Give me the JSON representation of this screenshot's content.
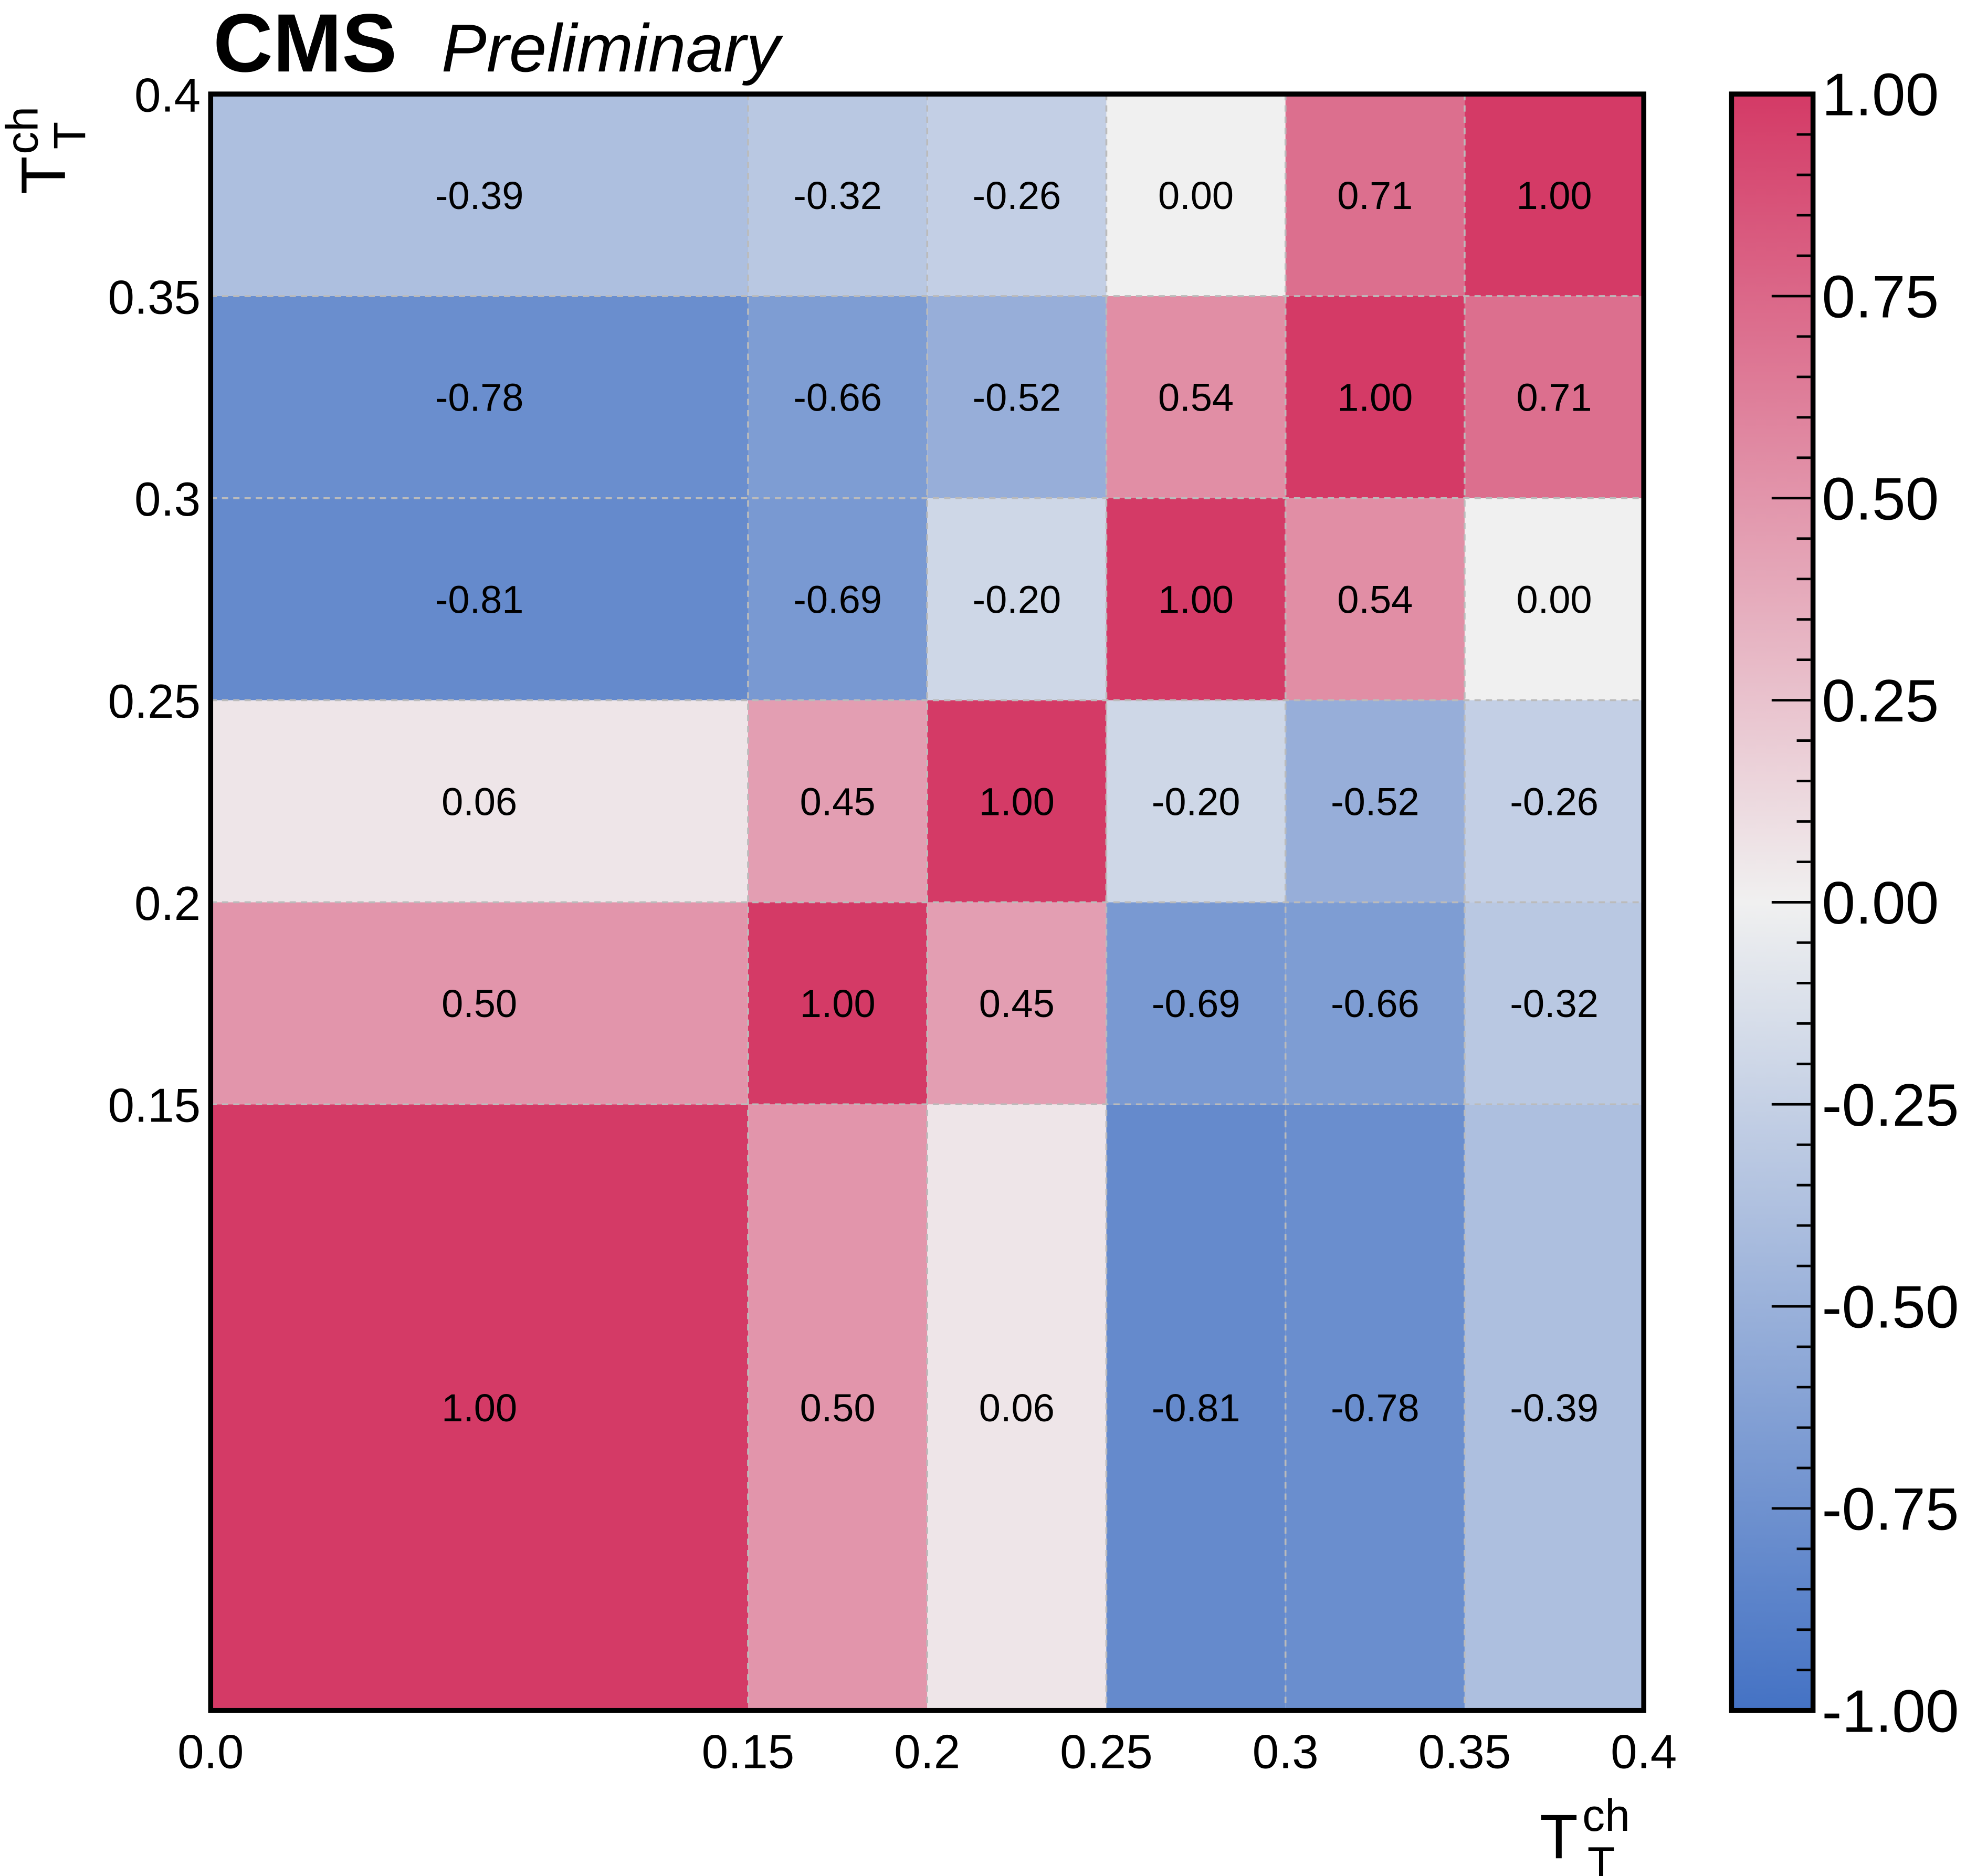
{
  "chart_data": {
    "type": "heatmap",
    "header": {
      "experiment": "CMS",
      "status": "Preliminary"
    },
    "xlabel": {
      "base": "T",
      "sub": "T",
      "sup": "ch"
    },
    "ylabel": {
      "base": "T",
      "sub": "T",
      "sup": "ch"
    },
    "x_bin_edges": [
      0.0,
      0.15,
      0.2,
      0.25,
      0.3,
      0.35,
      0.4
    ],
    "y_bin_edges": [
      0.0,
      0.15,
      0.2,
      0.25,
      0.3,
      0.35,
      0.4
    ],
    "x_tick_labels": [
      "0.0",
      "0.15",
      "0.2",
      "0.25",
      "0.3",
      "0.35",
      "0.4"
    ],
    "y_tick_labels": [
      "",
      "0.15",
      "0.2",
      "0.25",
      "0.3",
      "0.35",
      "0.4"
    ],
    "values_rows_bottom_to_top": [
      [
        1.0,
        0.5,
        0.06,
        -0.81,
        -0.78,
        -0.39
      ],
      [
        0.5,
        1.0,
        0.45,
        -0.69,
        -0.66,
        -0.32
      ],
      [
        0.06,
        0.45,
        1.0,
        -0.2,
        -0.52,
        -0.26
      ],
      [
        -0.81,
        -0.69,
        -0.2,
        1.0,
        0.54,
        -0.0
      ],
      [
        -0.78,
        -0.66,
        -0.52,
        0.54,
        1.0,
        0.71
      ],
      [
        -0.39,
        -0.32,
        -0.26,
        -0.0,
        0.71,
        1.0
      ]
    ],
    "colorbar": {
      "range": [
        -1.0,
        1.0
      ],
      "tick_labels": [
        "-1.00",
        "-0.75",
        "-0.50",
        "-0.25",
        "0.00",
        "0.25",
        "0.50",
        "0.75",
        "1.00"
      ],
      "colors": {
        "low": "#4472c4",
        "mid": "#f0f0f0",
        "high": "#d43a66"
      }
    },
    "grid": true
  }
}
